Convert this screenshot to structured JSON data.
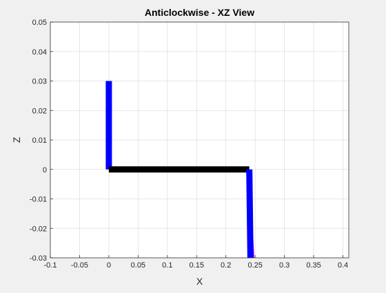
{
  "chart_data": {
    "type": "line",
    "title": "Anticlockwise - XZ View",
    "xlabel": "X",
    "ylabel": "Z",
    "xlim": [
      -0.1,
      0.41
    ],
    "ylim": [
      -0.03,
      0.05
    ],
    "xticks": [
      -0.1,
      -0.05,
      0,
      0.05,
      0.1,
      0.15,
      0.2,
      0.25,
      0.3,
      0.35,
      0.4
    ],
    "xtick_labels": [
      "-0.1",
      "-0.05",
      "0",
      "0.05",
      "0.1",
      "0.15",
      "0.2",
      "0.25",
      "0.3",
      "0.35",
      "0.4"
    ],
    "yticks": [
      -0.03,
      -0.02,
      -0.01,
      0,
      0.01,
      0.02,
      0.03,
      0.04,
      0.05
    ],
    "ytick_labels": [
      "-0.03",
      "-0.02",
      "-0.01",
      "0",
      "0.01",
      "0.02",
      "0.03",
      "0.04",
      "0.05"
    ],
    "grid": true,
    "series": [
      {
        "color": "#ff00ff",
        "weight": "thin",
        "x": [
          -0.003,
          0.002
        ],
        "y": [
          0.03,
          0
        ]
      },
      {
        "color": "#0000ff",
        "weight": "thick",
        "x": [
          0.0,
          0.0
        ],
        "y": [
          0.03,
          0
        ]
      },
      {
        "color": "#000000",
        "weight": "thick",
        "x": [
          0.0,
          0.24
        ],
        "y": [
          0,
          0
        ]
      },
      {
        "color": "#ff00ff",
        "weight": "thin",
        "x": [
          0.238,
          0.247
        ],
        "y": [
          0,
          -0.03
        ]
      },
      {
        "color": "#0000ff",
        "weight": "thick",
        "x": [
          0.24,
          0.242
        ],
        "y": [
          0,
          -0.03
        ]
      }
    ]
  }
}
